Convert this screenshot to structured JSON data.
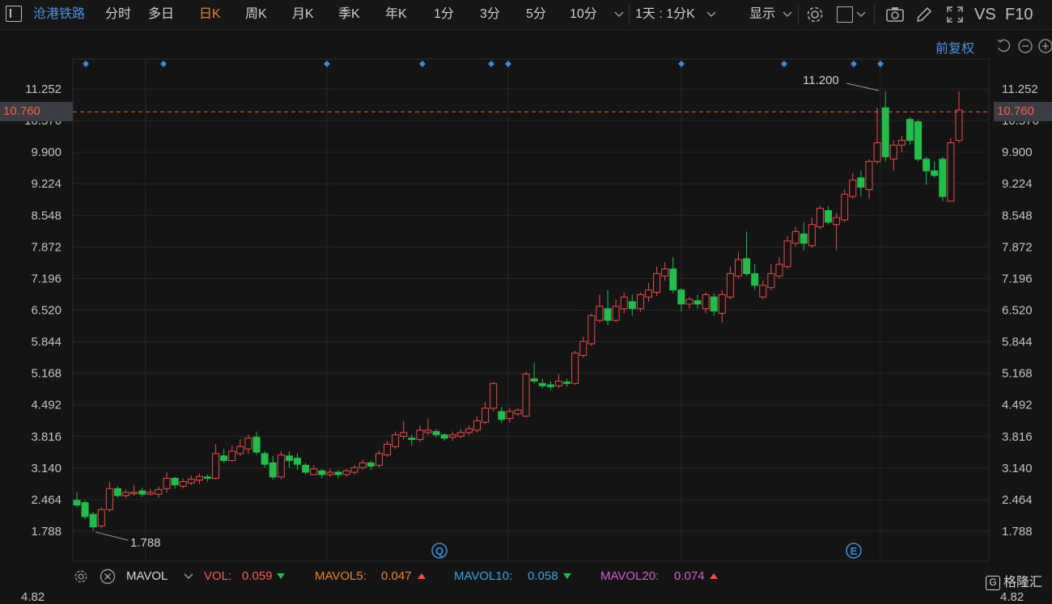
{
  "toolbar": {
    "stock_name": "沧港铁路",
    "period_tabs": [
      "分时",
      "多日",
      "日K",
      "周K",
      "月K",
      "季K",
      "年K",
      "1分",
      "3分",
      "5分",
      "10分"
    ],
    "active_tab": "日K",
    "range_select": "1天 : 1分K",
    "display_menu": "显示",
    "vs_label": "VS",
    "f10_label": "F10",
    "icons": [
      "menu-icon",
      "chevron-down-icon",
      "settings-icon",
      "rectangle-icon",
      "camera-icon",
      "pencil-icon",
      "fullscreen-icon"
    ]
  },
  "chart": {
    "adjust_mode": "前复权",
    "y_ticks": [
      "11.252",
      "10.576",
      "9.900",
      "9.224",
      "8.548",
      "7.872",
      "7.196",
      "6.520",
      "5.844",
      "5.168",
      "4.492",
      "3.816",
      "3.140",
      "2.464",
      "1.788"
    ],
    "current_price": "10.760",
    "high_label": "11.200",
    "low_label": "1.788",
    "event_markers": [
      "Q",
      "E"
    ],
    "up_color": "#f04a4a",
    "down_color": "#1fbf4a",
    "current_line_color": "#e0643b"
  },
  "indicator": {
    "name": "MAVOL",
    "items": [
      {
        "label": "VOL:",
        "value": "0.059",
        "dir": "down",
        "color": "#ff5b52"
      },
      {
        "label": "MAVOL5:",
        "value": "0.047",
        "dir": "up",
        "color": "#f0822c"
      },
      {
        "label": "MAVOL10:",
        "value": "0.058",
        "dir": "down",
        "color": "#36a6e8"
      },
      {
        "label": "MAVOL20:",
        "value": "0.074",
        "dir": "up",
        "color": "#d65bd6"
      }
    ],
    "partial_tick": "4.82"
  },
  "logo": {
    "text": "格隆汇"
  }
}
